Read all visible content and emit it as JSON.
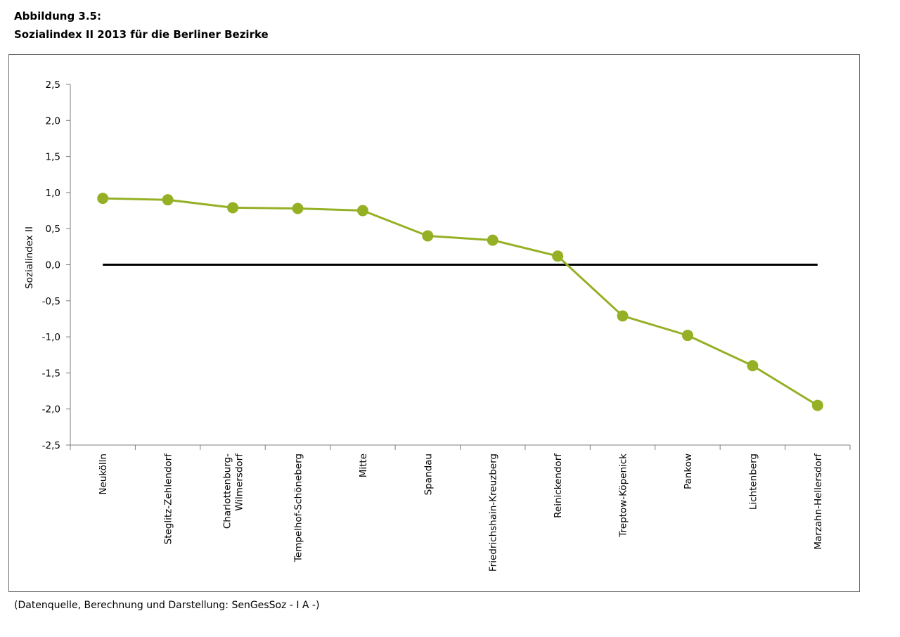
{
  "figure": {
    "label": "Abbildung 3.5:",
    "title": "Sozialindex II 2013 für die Berliner Bezirke",
    "source": "(Datenquelle, Berechnung und Darstellung: SenGesSoz - I A -)"
  },
  "chart_data": {
    "type": "line",
    "title": "Sozialindex II 2013 für die Berliner Bezirke",
    "xlabel": "",
    "ylabel": "Sozialindex II",
    "ylim": [
      -2.5,
      2.5
    ],
    "yticks": [
      "2,5",
      "2,0",
      "1,5",
      "1,0",
      "0,5",
      "0,0",
      "-0,5",
      "-1,0",
      "-1,5",
      "-2,0",
      "-2,5"
    ],
    "ytick_values": [
      2.5,
      2.0,
      1.5,
      1.0,
      0.5,
      0.0,
      -0.5,
      -1.0,
      -1.5,
      -2.0,
      -2.5
    ],
    "categories": [
      [
        "Neukölln"
      ],
      [
        "Steglitz-Zehlendorf"
      ],
      [
        "Charlottenburg-",
        "Wilmersdorf"
      ],
      [
        "Tempelhof-Schöneberg"
      ],
      [
        "Mitte"
      ],
      [
        "Spandau"
      ],
      [
        "Friedrichshain-Kreuzberg"
      ],
      [
        "Reinickendorf"
      ],
      [
        "Treptow-Köpenick"
      ],
      [
        "Pankow"
      ],
      [
        "Lichtenberg"
      ],
      [
        "Marzahn-Hellersdorf"
      ]
    ],
    "series": [
      {
        "values": [
          0.92,
          0.9,
          0.79,
          0.78,
          0.75,
          0.4,
          0.34,
          0.12,
          -0.71,
          -0.98,
          -1.4,
          -1.95
        ]
      }
    ],
    "reference_line": 0.0,
    "grid": false,
    "colors": {
      "series": "#95b025",
      "reference": "#000000",
      "axis": "#7f7f7f"
    }
  }
}
